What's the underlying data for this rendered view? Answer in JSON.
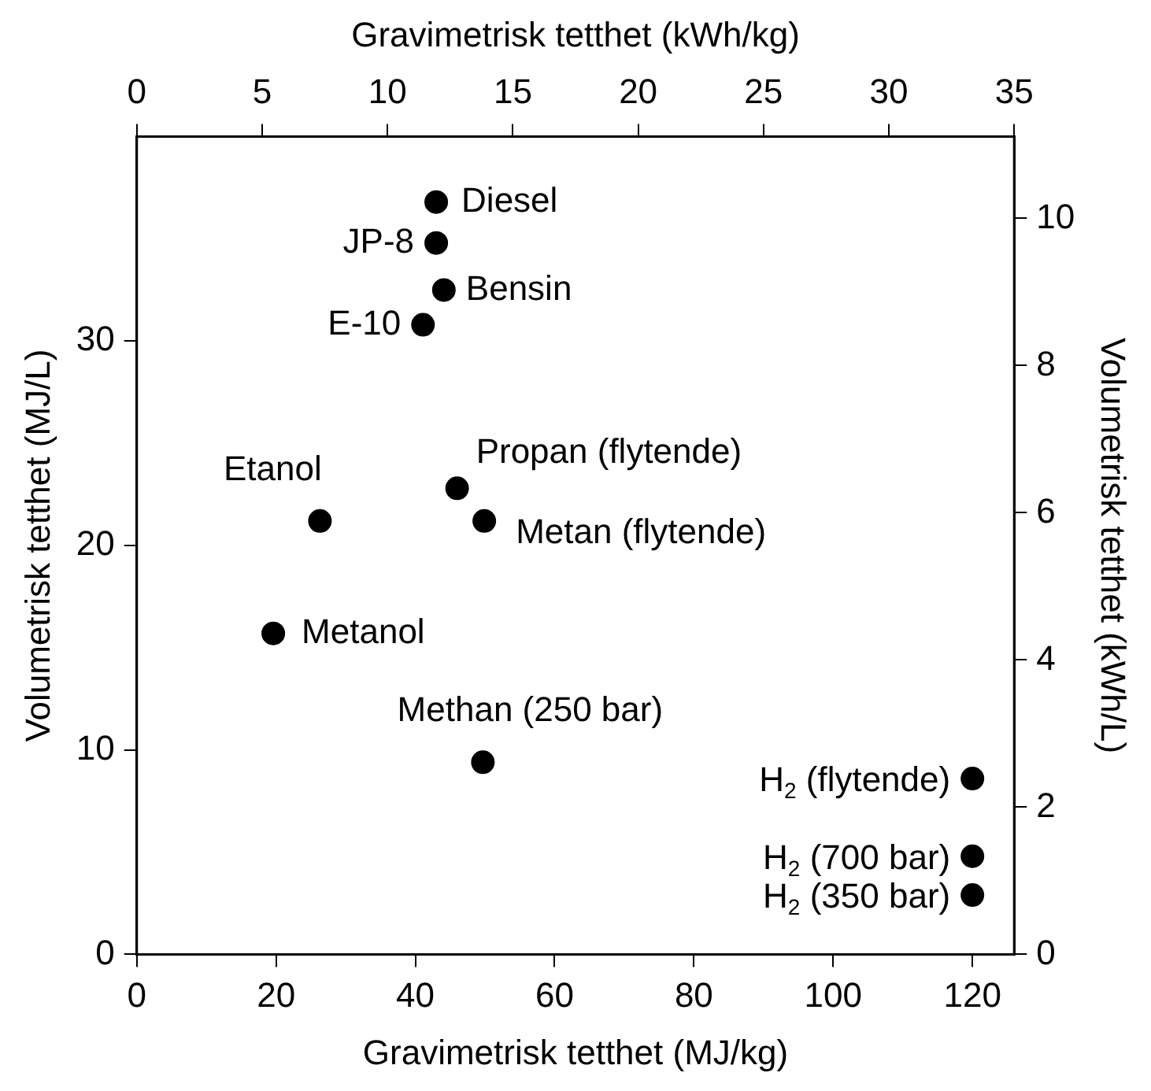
{
  "chart_data": {
    "type": "scatter",
    "xlabel": "Gravimetrisk tetthet (MJ/kg)",
    "x2label": "Gravimetrisk tetthet (kWh/kg)",
    "ylabel": "Volumetrisk tetthet (MJ/L)",
    "y2label": "Volumetrisk tetthet (kWh/L)",
    "x": [
      43,
      43,
      44.1,
      41.1,
      46,
      49.9,
      26.3,
      19.6,
      49.7,
      120,
      120,
      120
    ],
    "series": [
      {
        "color": "#000000",
        "values": [
          36.8,
          34.8,
          32.5,
          30.8,
          22.8,
          21.2,
          21.2,
          15.7,
          9.4,
          8.6,
          4.8,
          2.9
        ]
      }
    ],
    "xlim": [
      0,
      126
    ],
    "xticks": [
      0,
      20,
      40,
      60,
      80,
      100,
      120
    ],
    "x2lim": [
      0,
      35
    ],
    "x2ticks": [
      0,
      5,
      10,
      15,
      20,
      25,
      30,
      35
    ],
    "ylim": [
      0,
      40
    ],
    "yticks": [
      0,
      10,
      20,
      30
    ],
    "y2lim": [
      0,
      11.11
    ],
    "y2ticks": [
      0,
      2,
      4,
      6,
      8,
      10
    ],
    "marker": "circle",
    "grid": false,
    "legend": false,
    "annotations": [
      {
        "text": "Diesel",
        "x": 43,
        "y": 36.8
      },
      {
        "text": "JP-8",
        "x": 43,
        "y": 34.8
      },
      {
        "text": "Bensin",
        "x": 44.1,
        "y": 32.5
      },
      {
        "text": "E-10",
        "x": 41.1,
        "y": 30.8
      },
      {
        "text": "Propan (flytende)",
        "x": 46,
        "y": 22.8
      },
      {
        "text": "Metan (flytende)",
        "x": 49.9,
        "y": 21.2
      },
      {
        "text": "Etanol",
        "x": 26.3,
        "y": 21.2
      },
      {
        "text": "Metanol",
        "x": 19.6,
        "y": 15.7
      },
      {
        "text": "Methan (250 bar)",
        "x": 49.7,
        "y": 9.4
      },
      {
        "text": "H$_{2}$ (flytende)",
        "x": 120,
        "y": 8.6
      },
      {
        "text": "H$_{2}$ (700 bar)",
        "x": 120,
        "y": 4.8
      },
      {
        "text": "H$_{2}$ (350 bar)",
        "x": 120,
        "y": 2.9
      }
    ]
  }
}
